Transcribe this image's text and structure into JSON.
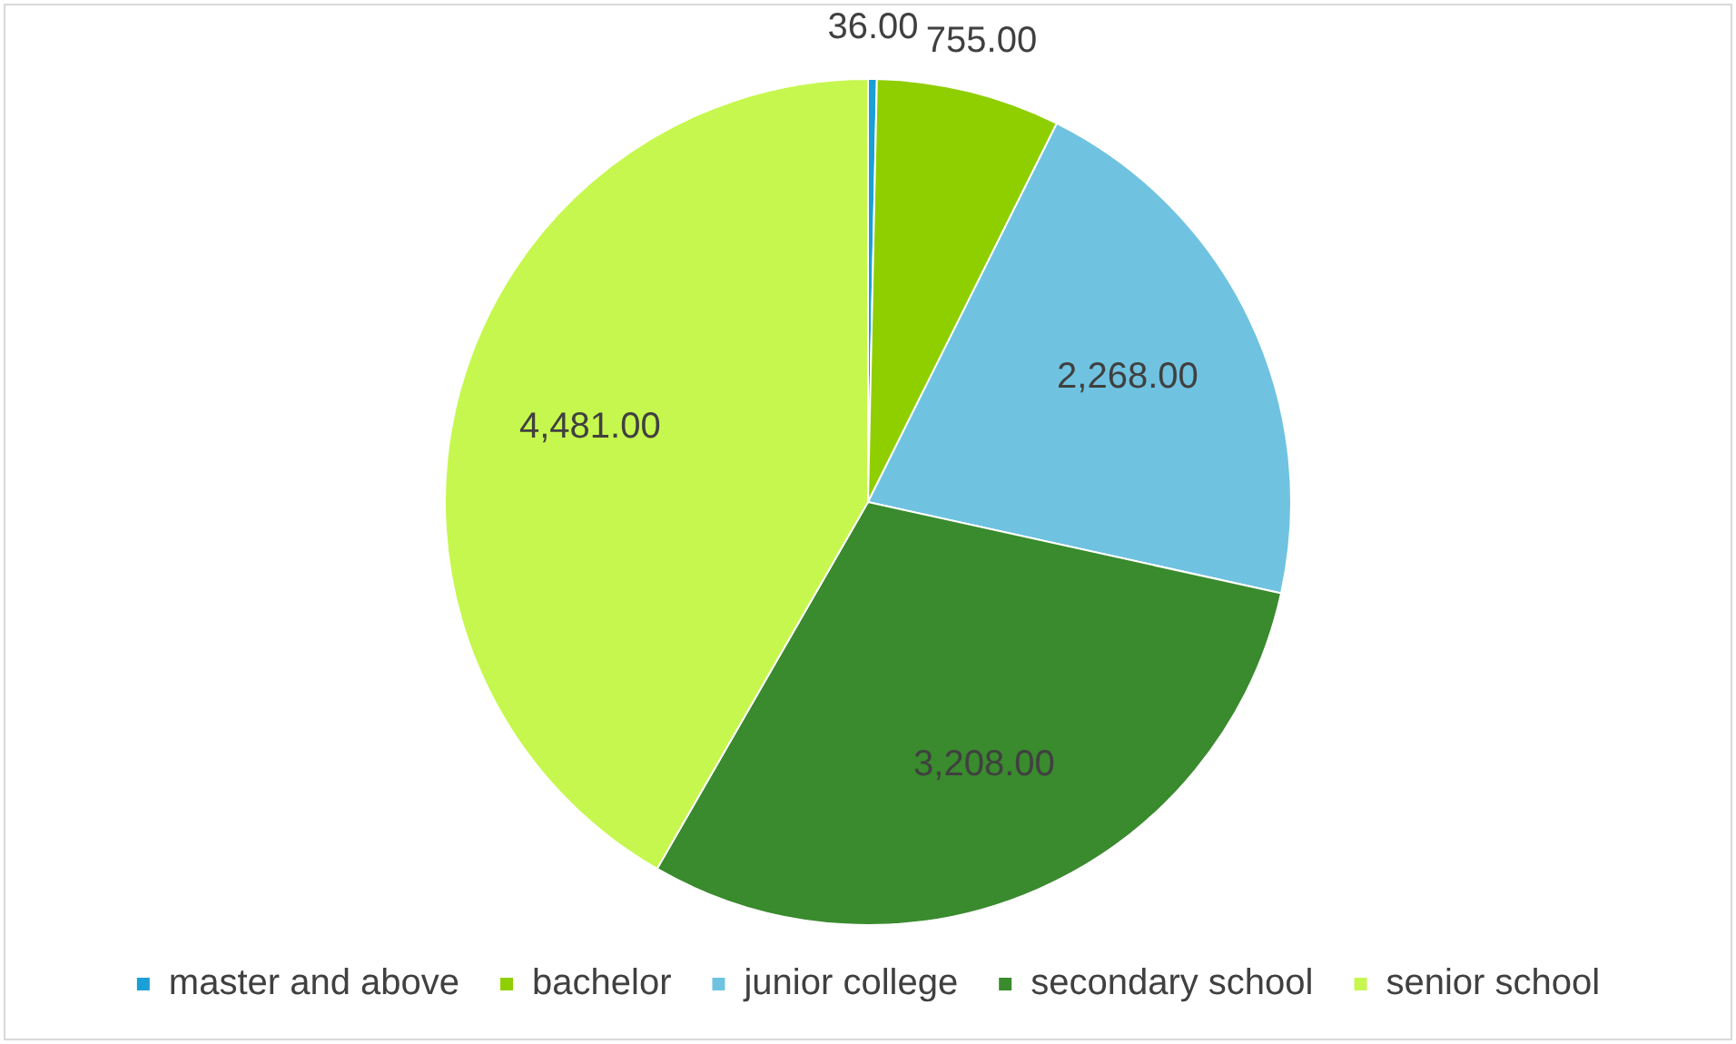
{
  "chart_data": {
    "type": "pie",
    "categories": [
      "master and above",
      "bachelor",
      "junior college",
      "secondary school",
      "senior school"
    ],
    "values": [
      36,
      755,
      2268,
      3208,
      4481
    ],
    "value_labels": [
      "36.00",
      "755.00",
      "2,268.00",
      "3,208.00",
      "4,481.00"
    ],
    "colors": [
      "#1a9fd6",
      "#8fcf00",
      "#6fc3e0",
      "#3a8a2e",
      "#c6f74e"
    ],
    "legend": "bottom"
  }
}
